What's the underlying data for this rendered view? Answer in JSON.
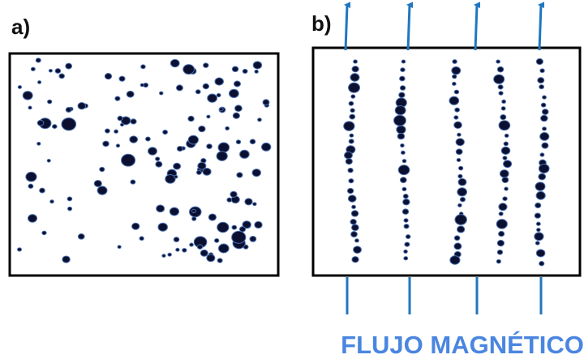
{
  "panels": {
    "a": {
      "label": "a)"
    },
    "b": {
      "label": "b)"
    }
  },
  "caption": "FLUJO MAGNÉTICO"
}
